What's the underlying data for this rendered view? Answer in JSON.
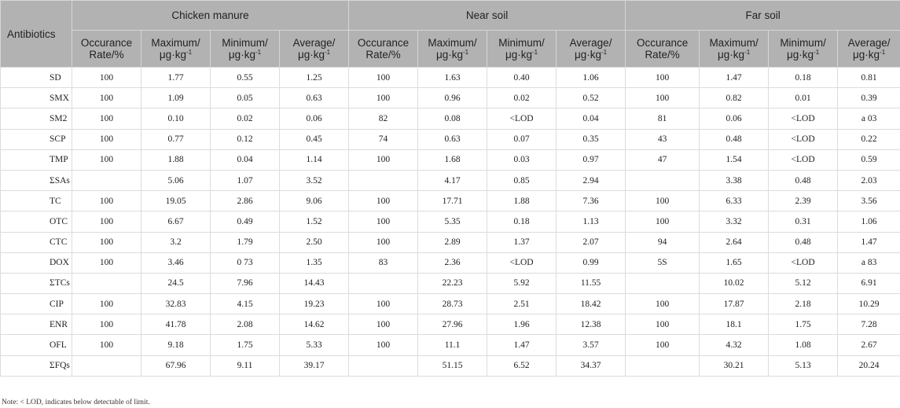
{
  "header": {
    "antibiotics": "Antibiotics",
    "groups": [
      "Chicken manure",
      "Near soil",
      "Far soil"
    ],
    "sub": {
      "occ1": "Occurance",
      "occ2": "Rate/%",
      "max": "Maximum/",
      "min": "Minimum/",
      "avg": "Average/",
      "unit_base": "μg·kg",
      "unit_exp": "-1"
    }
  },
  "rows": [
    [
      "SD",
      "100",
      "1.77",
      "0.55",
      "1.25",
      "100",
      "1.63",
      "0.40",
      "1.06",
      "100",
      "1.47",
      "0.18",
      "0.81"
    ],
    [
      "SMX",
      "100",
      "1.09",
      "0.05",
      "0.63",
      "100",
      "0.96",
      "0.02",
      "0.52",
      "100",
      "0.82",
      "0.01",
      "0.39"
    ],
    [
      "SM2",
      "100",
      "0.10",
      "0.02",
      "0.06",
      "82",
      "0.08",
      "<LOD",
      "0.04",
      "81",
      "0.06",
      "<LOD",
      "a 03"
    ],
    [
      "SCP",
      "100",
      "0.77",
      "0.12",
      "0.45",
      "74",
      "0.63",
      "0.07",
      "0.35",
      "43",
      "0.48",
      "<LOD",
      "0.22"
    ],
    [
      "TMP",
      "100",
      "1.88",
      "0.04",
      "1.14",
      "100",
      "1.68",
      "0.03",
      "0.97",
      "47",
      "1.54",
      "<LOD",
      "0.59"
    ],
    [
      "ΣSAs",
      "",
      "5.06",
      "1.07",
      "3.52",
      "",
      "4.17",
      "0.85",
      "2.94",
      "",
      "3.38",
      "0.48",
      "2.03"
    ],
    [
      "TC",
      "100",
      "19.05",
      "2.86",
      "9.06",
      "100",
      "17.71",
      "1.88",
      "7.36",
      "100",
      "6.33",
      "2.39",
      "3.56"
    ],
    [
      "OTC",
      "100",
      "6.67",
      "0.49",
      "1.52",
      "100",
      "5.35",
      "0.18",
      "1.13",
      "100",
      "3.32",
      "0.31",
      "1.06"
    ],
    [
      "CTC",
      "100",
      "3.2",
      "1.79",
      "2.50",
      "100",
      "2.89",
      "1.37",
      "2.07",
      "94",
      "2.64",
      "0.48",
      "1.47"
    ],
    [
      "DOX",
      "100",
      "3.46",
      "0 73",
      "1.35",
      "83",
      "2.36",
      "<LOD",
      "0.99",
      "5S",
      "1.65",
      "<LOD",
      "a 83"
    ],
    [
      "ΣTCs",
      "",
      "24.5",
      "7.96",
      "14.43",
      "",
      "22.23",
      "5.92",
      "11.55",
      "",
      "10.02",
      "5.12",
      "6.91"
    ],
    [
      "CIP",
      "100",
      "32.83",
      "4.15",
      "19.23",
      "100",
      "28.73",
      "2.51",
      "18.42",
      "100",
      "17.87",
      "2.18",
      "10.29"
    ],
    [
      "ENR",
      "100",
      "41.78",
      "2.08",
      "14.62",
      "100",
      "27.96",
      "1.96",
      "12.38",
      "100",
      "18.1",
      "1.75",
      "7.28"
    ],
    [
      "OFL",
      "100",
      "9.18",
      "1.75",
      "5.33",
      "100",
      "11.1",
      "1.47",
      "3.57",
      "100",
      "4.32",
      "1.08",
      "2.67"
    ],
    [
      "ΣFQs",
      "",
      "67.96",
      "9.11",
      "39.17",
      "",
      "51.15",
      "6.52",
      "34.37",
      "",
      "30.21",
      "5.13",
      "20.24"
    ]
  ],
  "note": "Note: < LOD, indicates below detectable of limit."
}
